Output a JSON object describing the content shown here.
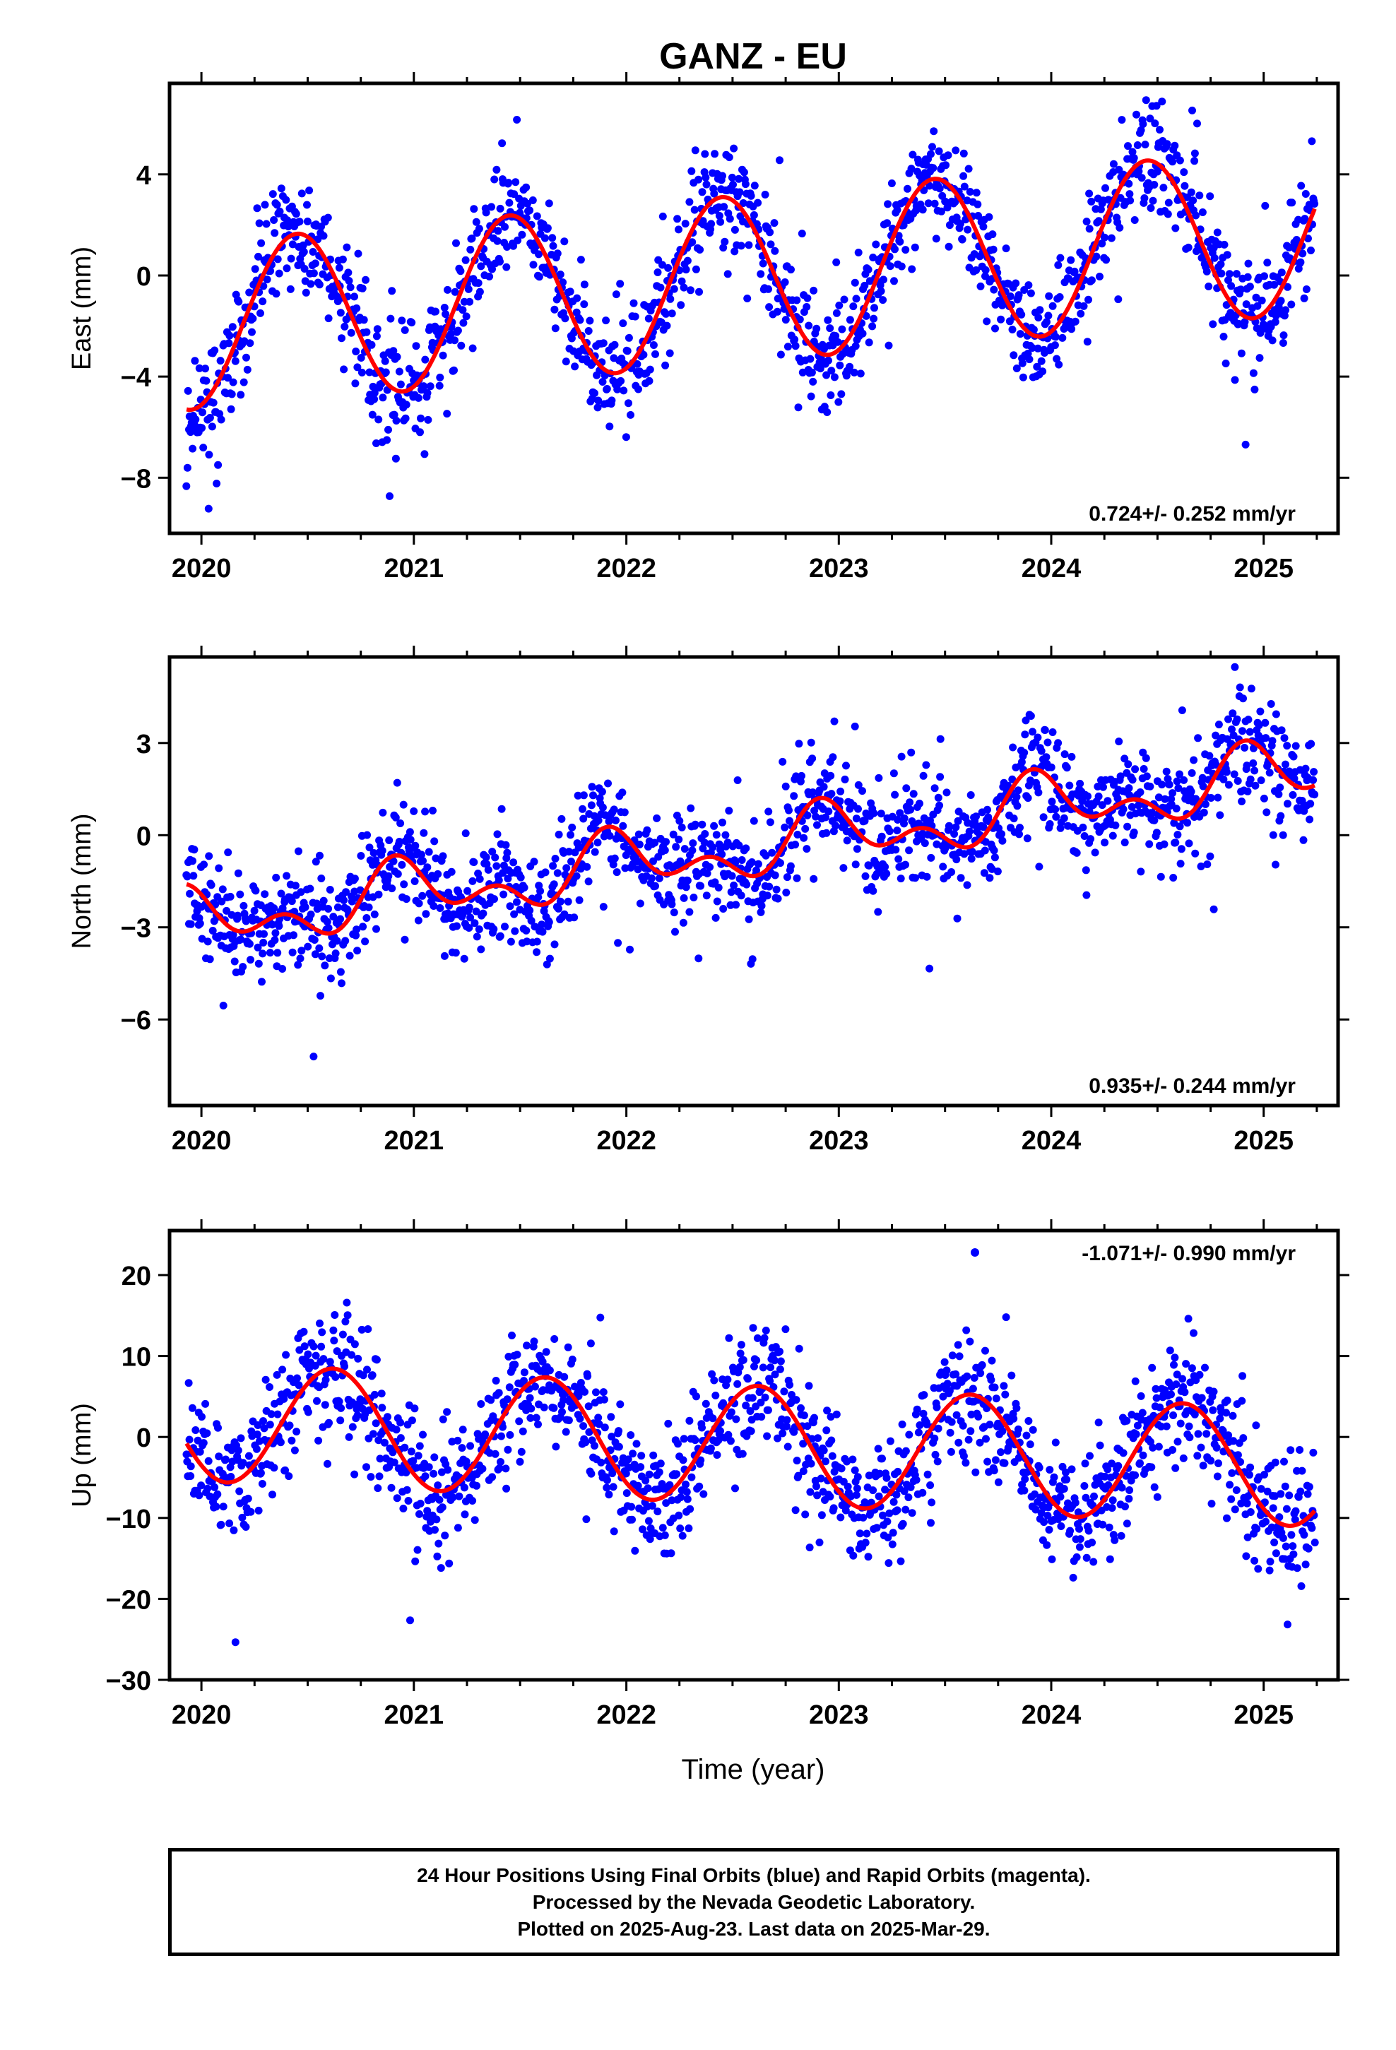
{
  "title": "GANZ - EU",
  "x_axis_label": "Time (year)",
  "caption": {
    "line1": "24 Hour Positions Using Final Orbits (blue) and Rapid Orbits (magenta).",
    "line2": "Processed by the Nevada Geodetic Laboratory.",
    "line3": "Plotted on 2025-Aug-23. Last data on 2025-Mar-29."
  },
  "colors": {
    "points": "#0000ff",
    "model": "#ff0000",
    "axes": "#000000"
  },
  "chart_data": [
    {
      "type": "scatter",
      "component": "east",
      "ylabel": "East (mm)",
      "rate_label": "0.724+/- 0.252 mm/yr",
      "xlim": [
        2019.85,
        2025.35
      ],
      "ylim": [
        -10.2,
        7.6
      ],
      "x_ticks": [
        2020,
        2021,
        2022,
        2023,
        2024,
        2025
      ],
      "y_ticks": [
        -8,
        -4,
        0,
        4
      ],
      "model": {
        "rate": 0.724,
        "annual_amp": 3.3,
        "annual_peak": 0.45,
        "semiannual_amp": 0.0,
        "semiannual_peak": 0.0,
        "value_at_start": -5.3,
        "start": 2019.93,
        "end": 2025.24
      },
      "scatter_std": 1.1,
      "points_start": 2019.93,
      "points_end": 2025.24,
      "point_count": 1500,
      "legend": "bottom-right"
    },
    {
      "type": "scatter",
      "component": "north",
      "ylabel": "North (mm)",
      "rate_label": "0.935+/- 0.244 mm/yr",
      "xlim": [
        2019.85,
        2025.35
      ],
      "ylim": [
        -8.8,
        5.8
      ],
      "x_ticks": [
        2020,
        2021,
        2022,
        2023,
        2024,
        2025
      ],
      "y_ticks": [
        -6,
        -3,
        0,
        3
      ],
      "model": {
        "rate": 0.935,
        "annual_amp": 0.75,
        "annual_peak": 0.95,
        "semiannual_amp": 0.6,
        "semiannual_peak": 0.4,
        "value_at_start": -1.6,
        "start": 2019.93,
        "end": 2025.24
      },
      "scatter_std": 0.9,
      "points_start": 2019.93,
      "points_end": 2025.24,
      "point_count": 1500,
      "legend": "bottom-right"
    },
    {
      "type": "scatter",
      "component": "up",
      "ylabel": "Up (mm)",
      "rate_label": "-1.071+/- 0.990 mm/yr",
      "xlim": [
        2019.85,
        2025.35
      ],
      "ylim": [
        -30,
        25.5
      ],
      "x_ticks": [
        2020,
        2021,
        2022,
        2023,
        2024,
        2025
      ],
      "y_ticks": [
        -30,
        -20,
        -10,
        0,
        10,
        20
      ],
      "model": {
        "rate": -1.071,
        "annual_amp": 7.3,
        "annual_peak": 0.62,
        "semiannual_amp": 0.0,
        "semiannual_peak": 0.0,
        "value_at_start": -0.8,
        "start": 2019.93,
        "end": 2025.24
      },
      "scatter_std": 3.8,
      "points_start": 2019.93,
      "points_end": 2025.24,
      "point_count": 1500,
      "legend": "top-right"
    }
  ]
}
